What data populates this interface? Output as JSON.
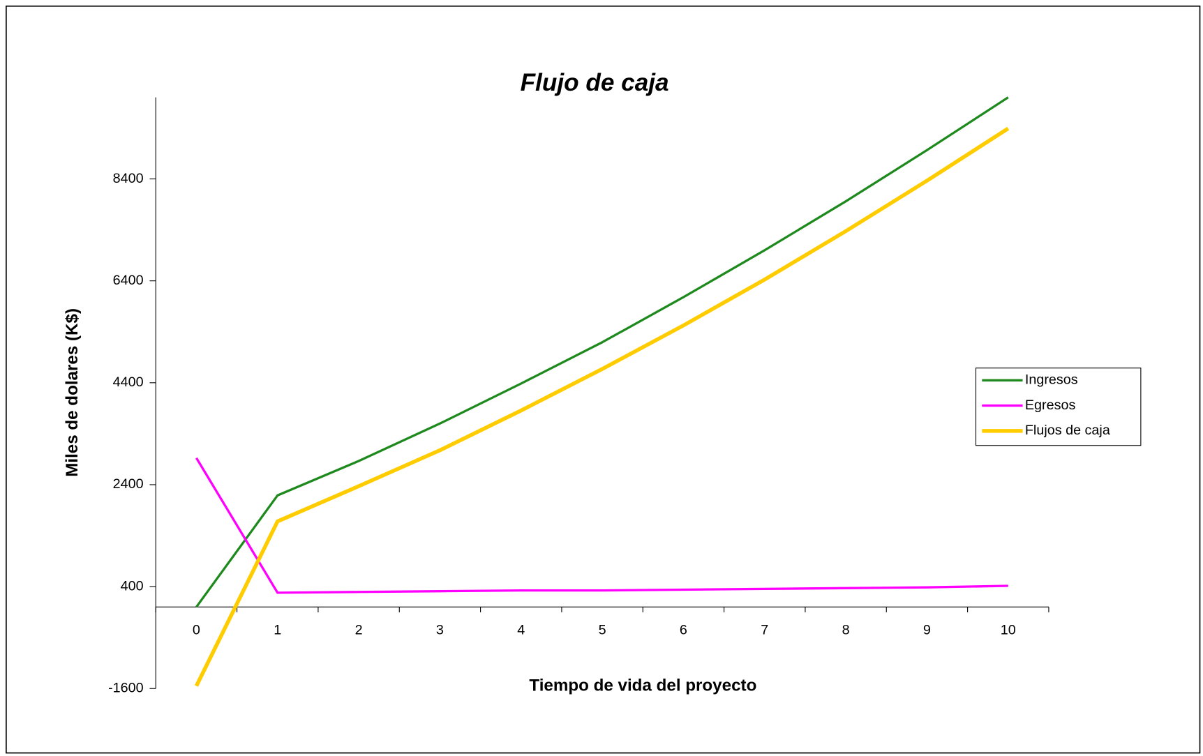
{
  "chart_data": {
    "type": "line",
    "title": "Flujo de caja",
    "xlabel": "Tiempo de vida del proyecto",
    "ylabel": "Miles de dolares (K$)",
    "categories": [
      "0",
      "1",
      "2",
      "3",
      "4",
      "5",
      "6",
      "7",
      "8",
      "9",
      "10"
    ],
    "series": [
      {
        "name": "Ingresos",
        "color": "#1e8a1e",
        "values": [
          0,
          2190,
          2865,
          3600,
          4385,
          5195,
          6080,
          7000,
          7960,
          8965,
          10000
        ]
      },
      {
        "name": "Egresos",
        "color": "#ff00ff",
        "values": [
          2925,
          280,
          295,
          310,
          325,
          325,
          340,
          355,
          370,
          385,
          415
        ]
      },
      {
        "name": "Flujos de caja",
        "color": "#ffcc00",
        "values": [
          -1550,
          1680,
          2370,
          3075,
          3855,
          4670,
          5525,
          6425,
          7375,
          8365,
          9390
        ]
      }
    ],
    "ylim": [
      -1600,
      10000
    ],
    "yticks": [
      -1600,
      400,
      2400,
      4400,
      6400,
      8400
    ],
    "grid": false,
    "legend": "right"
  }
}
